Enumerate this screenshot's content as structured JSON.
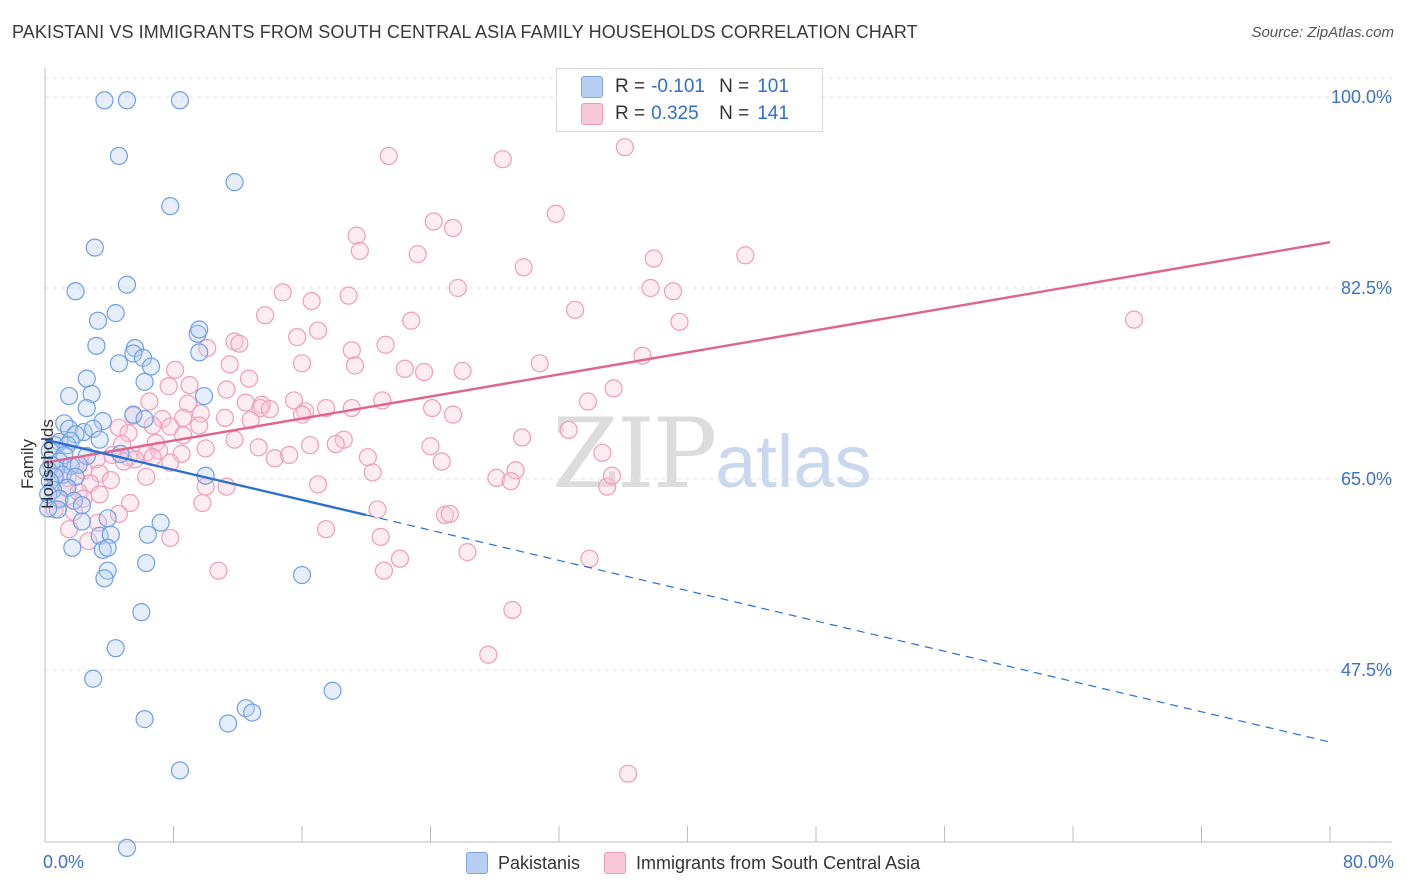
{
  "title": "PAKISTANI VS IMMIGRANTS FROM SOUTH CENTRAL ASIA FAMILY HOUSEHOLDS CORRELATION CHART",
  "source": "Source: ZipAtlas.com",
  "watermark": {
    "zip": "ZIP",
    "atlas": "atlas"
  },
  "legend": {
    "series1": {
      "r_label": "R =",
      "r_value": "-0.101",
      "n_label": "N =",
      "n_value": "101"
    },
    "series2": {
      "r_label": "R =",
      "r_value": "0.325",
      "n_label": "N =",
      "n_value": "141"
    }
  },
  "chart_data": {
    "type": "scatter",
    "title": "PAKISTANI VS IMMIGRANTS FROM SOUTH CENTRAL ASIA FAMILY HOUSEHOLDS CORRELATION CHART",
    "xlabel": "",
    "ylabel": "Family Households",
    "xlim": [
      0,
      80
    ],
    "ylim": [
      30,
      100
    ],
    "x_tick_labels": [
      "0.0%",
      "80.0%"
    ],
    "y_ticks": [
      47.5,
      65.0,
      82.5,
      100.0
    ],
    "y_tick_labels": [
      "47.5%",
      "65.0%",
      "82.5%",
      "100.0%"
    ],
    "grid": true,
    "colors": {
      "series1": "#6f9fe6",
      "series2": "#f19cb8",
      "trend1": "#2a6fd1",
      "trend2": "#e0648e",
      "axis_text": "#3d72c7"
    },
    "series": [
      {
        "name": "Pakistanis",
        "r": -0.101,
        "n": 101,
        "trend": {
          "x": [
            0,
            20
          ],
          "y": [
            68.6,
            61.7
          ],
          "dashed_to": [
            80,
            40.9
          ]
        },
        "points": [
          [
            3.7,
            99.7
          ],
          [
            5.1,
            99.7
          ],
          [
            8.4,
            99.7
          ],
          [
            4.6,
            94.6
          ],
          [
            11.8,
            92.2
          ],
          [
            7.8,
            90.0
          ],
          [
            3.1,
            86.2
          ],
          [
            5.1,
            82.8
          ],
          [
            1.9,
            82.2
          ],
          [
            4.4,
            80.2
          ],
          [
            3.3,
            79.5
          ],
          [
            9.5,
            78.3
          ],
          [
            9.6,
            78.7
          ],
          [
            3.2,
            77.2
          ],
          [
            5.6,
            77.0
          ],
          [
            5.5,
            76.5
          ],
          [
            9.6,
            76.6
          ],
          [
            6.1,
            76.1
          ],
          [
            4.6,
            75.6
          ],
          [
            6.6,
            75.3
          ],
          [
            2.6,
            74.2
          ],
          [
            6.2,
            73.9
          ],
          [
            9.9,
            72.6
          ],
          [
            1.5,
            72.6
          ],
          [
            2.9,
            72.8
          ],
          [
            1.2,
            70.1
          ],
          [
            2.6,
            71.5
          ],
          [
            5.5,
            70.9
          ],
          [
            6.2,
            70.5
          ],
          [
            3.6,
            70.3
          ],
          [
            1.5,
            69.6
          ],
          [
            2.4,
            69.3
          ],
          [
            3.0,
            69.6
          ],
          [
            1.9,
            69.1
          ],
          [
            3.4,
            68.6
          ],
          [
            0.9,
            68.4
          ],
          [
            1.6,
            68.5
          ],
          [
            0.6,
            68.1
          ],
          [
            1.4,
            68.1
          ],
          [
            0.3,
            67.6
          ],
          [
            2.6,
            67.1
          ],
          [
            1.2,
            67.2
          ],
          [
            4.7,
            67.3
          ],
          [
            0.9,
            66.6
          ],
          [
            0.4,
            66.3
          ],
          [
            1.6,
            66.2
          ],
          [
            2.1,
            66.3
          ],
          [
            0.7,
            65.9
          ],
          [
            0.2,
            65.8
          ],
          [
            1.1,
            65.4
          ],
          [
            0.6,
            65.2
          ],
          [
            1.9,
            65.2
          ],
          [
            10.0,
            65.3
          ],
          [
            0.3,
            64.8
          ],
          [
            1.4,
            64.2
          ],
          [
            0.5,
            64.0
          ],
          [
            0.2,
            63.6
          ],
          [
            0.9,
            63.2
          ],
          [
            1.8,
            63.0
          ],
          [
            2.3,
            62.6
          ],
          [
            0.8,
            62.2
          ],
          [
            0.2,
            62.3
          ],
          [
            3.9,
            61.4
          ],
          [
            2.3,
            61.1
          ],
          [
            7.2,
            61.0
          ],
          [
            6.4,
            59.9
          ],
          [
            3.4,
            59.8
          ],
          [
            4.1,
            59.9
          ],
          [
            1.7,
            58.7
          ],
          [
            3.6,
            58.5
          ],
          [
            3.9,
            58.7
          ],
          [
            6.3,
            57.3
          ],
          [
            3.9,
            56.6
          ],
          [
            3.7,
            55.9
          ],
          [
            16.0,
            56.2
          ],
          [
            6.0,
            52.8
          ],
          [
            4.4,
            49.5
          ],
          [
            3.0,
            46.7
          ],
          [
            17.9,
            45.6
          ],
          [
            6.2,
            43.0
          ],
          [
            12.5,
            44.0
          ],
          [
            12.9,
            43.6
          ],
          [
            11.4,
            42.6
          ],
          [
            8.4,
            38.3
          ],
          [
            5.1,
            31.2
          ]
        ]
      },
      {
        "name": "Immigrants from South Central Asia",
        "r": 0.325,
        "n": 141,
        "trend": {
          "x": [
            0,
            80
          ],
          "y": [
            66.5,
            86.7
          ]
        },
        "points": [
          [
            36.9,
            98.7
          ],
          [
            21.4,
            94.6
          ],
          [
            28.5,
            94.3
          ],
          [
            36.1,
            95.4
          ],
          [
            31.8,
            89.3
          ],
          [
            24.2,
            88.6
          ],
          [
            25.4,
            88.0
          ],
          [
            19.4,
            87.3
          ],
          [
            19.6,
            85.9
          ],
          [
            23.2,
            85.6
          ],
          [
            43.6,
            85.5
          ],
          [
            37.9,
            85.2
          ],
          [
            29.8,
            84.4
          ],
          [
            14.8,
            82.1
          ],
          [
            16.6,
            81.3
          ],
          [
            18.9,
            81.8
          ],
          [
            25.7,
            82.5
          ],
          [
            37.7,
            82.5
          ],
          [
            39.1,
            82.2
          ],
          [
            33.0,
            80.5
          ],
          [
            13.7,
            80.0
          ],
          [
            22.8,
            79.5
          ],
          [
            39.5,
            79.4
          ],
          [
            15.7,
            78.0
          ],
          [
            11.8,
            77.6
          ],
          [
            17.0,
            78.6
          ],
          [
            12.1,
            77.4
          ],
          [
            19.1,
            76.8
          ],
          [
            21.2,
            77.3
          ],
          [
            10.1,
            77.0
          ],
          [
            16.0,
            75.6
          ],
          [
            19.3,
            75.4
          ],
          [
            11.5,
            75.5
          ],
          [
            22.4,
            75.1
          ],
          [
            8.1,
            75.0
          ],
          [
            26.0,
            74.9
          ],
          [
            23.6,
            74.8
          ],
          [
            30.8,
            75.6
          ],
          [
            12.7,
            74.2
          ],
          [
            9.0,
            73.6
          ],
          [
            7.7,
            73.5
          ],
          [
            11.3,
            73.2
          ],
          [
            21.0,
            72.2
          ],
          [
            15.5,
            72.2
          ],
          [
            13.5,
            71.8
          ],
          [
            12.5,
            72.0
          ],
          [
            6.5,
            72.1
          ],
          [
            13.4,
            71.5
          ],
          [
            8.9,
            71.9
          ],
          [
            14.0,
            71.4
          ],
          [
            9.7,
            71.0
          ],
          [
            16.2,
            71.2
          ],
          [
            17.5,
            71.5
          ],
          [
            19.1,
            71.5
          ],
          [
            16.0,
            70.9
          ],
          [
            11.2,
            70.6
          ],
          [
            5.5,
            70.8
          ],
          [
            24.1,
            71.5
          ],
          [
            25.4,
            70.9
          ],
          [
            33.8,
            72.1
          ],
          [
            8.6,
            70.6
          ],
          [
            7.3,
            70.5
          ],
          [
            9.6,
            69.9
          ],
          [
            6.7,
            69.9
          ],
          [
            7.8,
            69.8
          ],
          [
            12.8,
            70.4
          ],
          [
            4.6,
            69.7
          ],
          [
            5.2,
            69.2
          ],
          [
            8.6,
            69.0
          ],
          [
            11.8,
            68.6
          ],
          [
            18.6,
            68.6
          ],
          [
            29.7,
            68.8
          ],
          [
            24.0,
            68.0
          ],
          [
            6.9,
            68.3
          ],
          [
            4.8,
            68.2
          ],
          [
            13.3,
            67.9
          ],
          [
            16.5,
            68.1
          ],
          [
            18.1,
            68.2
          ],
          [
            10.0,
            67.8
          ],
          [
            6.3,
            67.4
          ],
          [
            4.2,
            67.2
          ],
          [
            7.1,
            67.6
          ],
          [
            5.2,
            67.0
          ],
          [
            5.6,
            66.8
          ],
          [
            6.7,
            67.0
          ],
          [
            8.5,
            67.3
          ],
          [
            14.3,
            66.9
          ],
          [
            15.2,
            67.2
          ],
          [
            20.1,
            67.0
          ],
          [
            24.7,
            66.6
          ],
          [
            3.2,
            66.8
          ],
          [
            4.9,
            66.6
          ],
          [
            1.9,
            66.3
          ],
          [
            2.4,
            65.8
          ],
          [
            3.4,
            65.5
          ],
          [
            6.3,
            65.2
          ],
          [
            7.8,
            66.5
          ],
          [
            20.4,
            65.6
          ],
          [
            28.1,
            65.1
          ],
          [
            29.3,
            65.8
          ],
          [
            29.0,
            64.8
          ],
          [
            1.4,
            65.1
          ],
          [
            2.8,
            64.6
          ],
          [
            4.1,
            64.9
          ],
          [
            10.0,
            64.3
          ],
          [
            11.3,
            64.3
          ],
          [
            17.0,
            64.5
          ],
          [
            35.0,
            64.3
          ],
          [
            35.3,
            65.3
          ],
          [
            1.3,
            64.2
          ],
          [
            2.1,
            63.8
          ],
          [
            3.4,
            63.6
          ],
          [
            0.9,
            63.1
          ],
          [
            2.4,
            63.2
          ],
          [
            5.3,
            62.8
          ],
          [
            9.8,
            62.8
          ],
          [
            0.6,
            62.2
          ],
          [
            1.8,
            62.0
          ],
          [
            4.6,
            61.8
          ],
          [
            24.9,
            61.7
          ],
          [
            25.2,
            61.8
          ],
          [
            20.7,
            62.2
          ],
          [
            3.3,
            61.0
          ],
          [
            17.5,
            60.4
          ],
          [
            20.9,
            59.7
          ],
          [
            7.8,
            59.6
          ],
          [
            1.5,
            60.4
          ],
          [
            2.7,
            59.3
          ],
          [
            26.3,
            58.3
          ],
          [
            22.1,
            57.7
          ],
          [
            33.9,
            57.7
          ],
          [
            21.1,
            56.6
          ],
          [
            10.8,
            56.6
          ],
          [
            29.1,
            53.0
          ],
          [
            27.6,
            48.9
          ],
          [
            36.3,
            38.0
          ],
          [
            67.8,
            79.6
          ],
          [
            34.7,
            67.4
          ],
          [
            35.4,
            73.3
          ],
          [
            37.2,
            76.3
          ],
          [
            32.6,
            69.5
          ]
        ]
      }
    ]
  },
  "bottom_legend": {
    "series1": "Pakistanis",
    "series2": "Immigrants from South Central Asia"
  }
}
